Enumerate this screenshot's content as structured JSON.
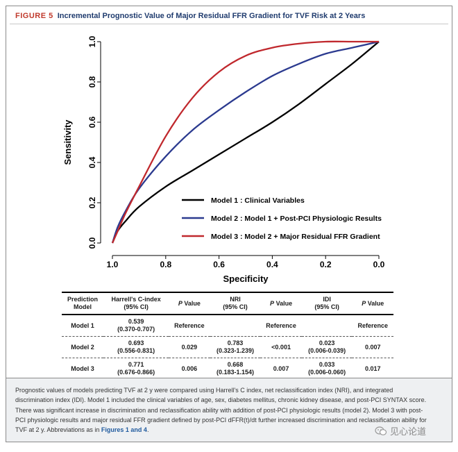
{
  "figure": {
    "label": "FIGURE 5",
    "title": "Incremental Prognostic Value of Major Residual FFR Gradient for TVF Risk at 2 Years"
  },
  "colors": {
    "model1": "#000000",
    "model2": "#2b3a8f",
    "model3": "#c0282d",
    "figure_label": "#c0392b",
    "title_text": "#1f3b6e",
    "link": "#1f5a9e"
  },
  "chart_data": {
    "type": "line",
    "xlabel": "Specificity",
    "ylabel": "Sensitivity",
    "xlim": [
      1.0,
      0.0
    ],
    "ylim": [
      0.0,
      1.0
    ],
    "x_ticks": [
      "1.0",
      "0.8",
      "0.6",
      "0.4",
      "0.2",
      "0.0"
    ],
    "y_ticks": [
      "0.0",
      "0.2",
      "0.4",
      "0.6",
      "0.8",
      "1.0"
    ],
    "grid": false,
    "legend_position": "bottom-right",
    "series": [
      {
        "name": "Model 1 : Clinical Variables",
        "color": "#000000",
        "x": [
          1.0,
          0.98,
          0.95,
          0.9,
          0.8,
          0.7,
          0.6,
          0.5,
          0.4,
          0.3,
          0.2,
          0.1,
          0.0
        ],
        "y": [
          0.0,
          0.06,
          0.11,
          0.18,
          0.28,
          0.36,
          0.44,
          0.52,
          0.6,
          0.69,
          0.79,
          0.89,
          1.0
        ]
      },
      {
        "name": "Model 2 : Model 1 + Post-PCI Physiologic Results",
        "color": "#2b3a8f",
        "x": [
          1.0,
          0.98,
          0.95,
          0.9,
          0.8,
          0.7,
          0.6,
          0.5,
          0.4,
          0.3,
          0.2,
          0.1,
          0.0
        ],
        "y": [
          0.0,
          0.08,
          0.16,
          0.27,
          0.43,
          0.56,
          0.66,
          0.75,
          0.83,
          0.89,
          0.94,
          0.97,
          1.0
        ]
      },
      {
        "name": "Model 3 : Model 2 + Major Residual FFR Gradient",
        "color": "#c0282d",
        "x": [
          1.0,
          0.98,
          0.95,
          0.9,
          0.8,
          0.7,
          0.6,
          0.5,
          0.4,
          0.3,
          0.2,
          0.1,
          0.0
        ],
        "y": [
          0.0,
          0.06,
          0.15,
          0.28,
          0.53,
          0.72,
          0.85,
          0.93,
          0.97,
          0.99,
          1.0,
          1.0,
          1.0
        ]
      }
    ]
  },
  "table": {
    "headers": [
      {
        "line1": "Prediction",
        "line2": "Model"
      },
      {
        "line1": "Harrell's C-index",
        "line2": "(95% CI)"
      },
      {
        "line1": "P Value",
        "line2": ""
      },
      {
        "line1": "NRI",
        "line2": "(95% CI)"
      },
      {
        "line1": "P Value",
        "line2": ""
      },
      {
        "line1": "IDI",
        "line2": "(95% CI)"
      },
      {
        "line1": "P Value",
        "line2": ""
      }
    ],
    "rows": [
      {
        "model": "Model 1",
        "c_index": "0.539",
        "c_index_ci": "(0.370-0.707)",
        "c_p": "Reference",
        "nri": "",
        "nri_ci": "",
        "nri_p": "Reference",
        "idi": "",
        "idi_ci": "",
        "idi_p": "Reference"
      },
      {
        "model": "Model 2",
        "c_index": "0.693",
        "c_index_ci": "(0.556-0.831)",
        "c_p": "0.029",
        "nri": "0.783",
        "nri_ci": "(0.323-1.239)",
        "nri_p": "<0.001",
        "idi": "0.023",
        "idi_ci": "(0.006-0.039)",
        "idi_p": "0.007"
      },
      {
        "model": "Model 3",
        "c_index": "0.771",
        "c_index_ci": "(0.676-0.866)",
        "c_p": "0.006",
        "nri": "0.668",
        "nri_ci": "(0.183-1.154)",
        "nri_p": "0.007",
        "idi": "0.033",
        "idi_ci": "(0.006-0.060)",
        "idi_p": "0.017"
      }
    ]
  },
  "caption": {
    "text": "Prognostic values of models predicting TVF at 2 y were compared using Harrell's C index, net reclassification index (NRI), and integrated discrimination index (IDI). Model 1 included the clinical variables of age, sex, diabetes mellitus, chronic kidney disease, and post-PCI SYNTAX score. There was significant increase in discrimination and reclassification ability with addition of post-PCI physiologic results (model 2). Model 3 with post-PCI physiologic results and major residual FFR gradient defined by post-PCI dFFR(t)/dt further increased discrimination and reclassification ability for TVF at 2 y. Abbreviations as in",
    "link": "Figures 1 and 4",
    "end": "."
  },
  "watermark": {
    "text": "见心论道",
    "icon": "wechat-icon"
  }
}
